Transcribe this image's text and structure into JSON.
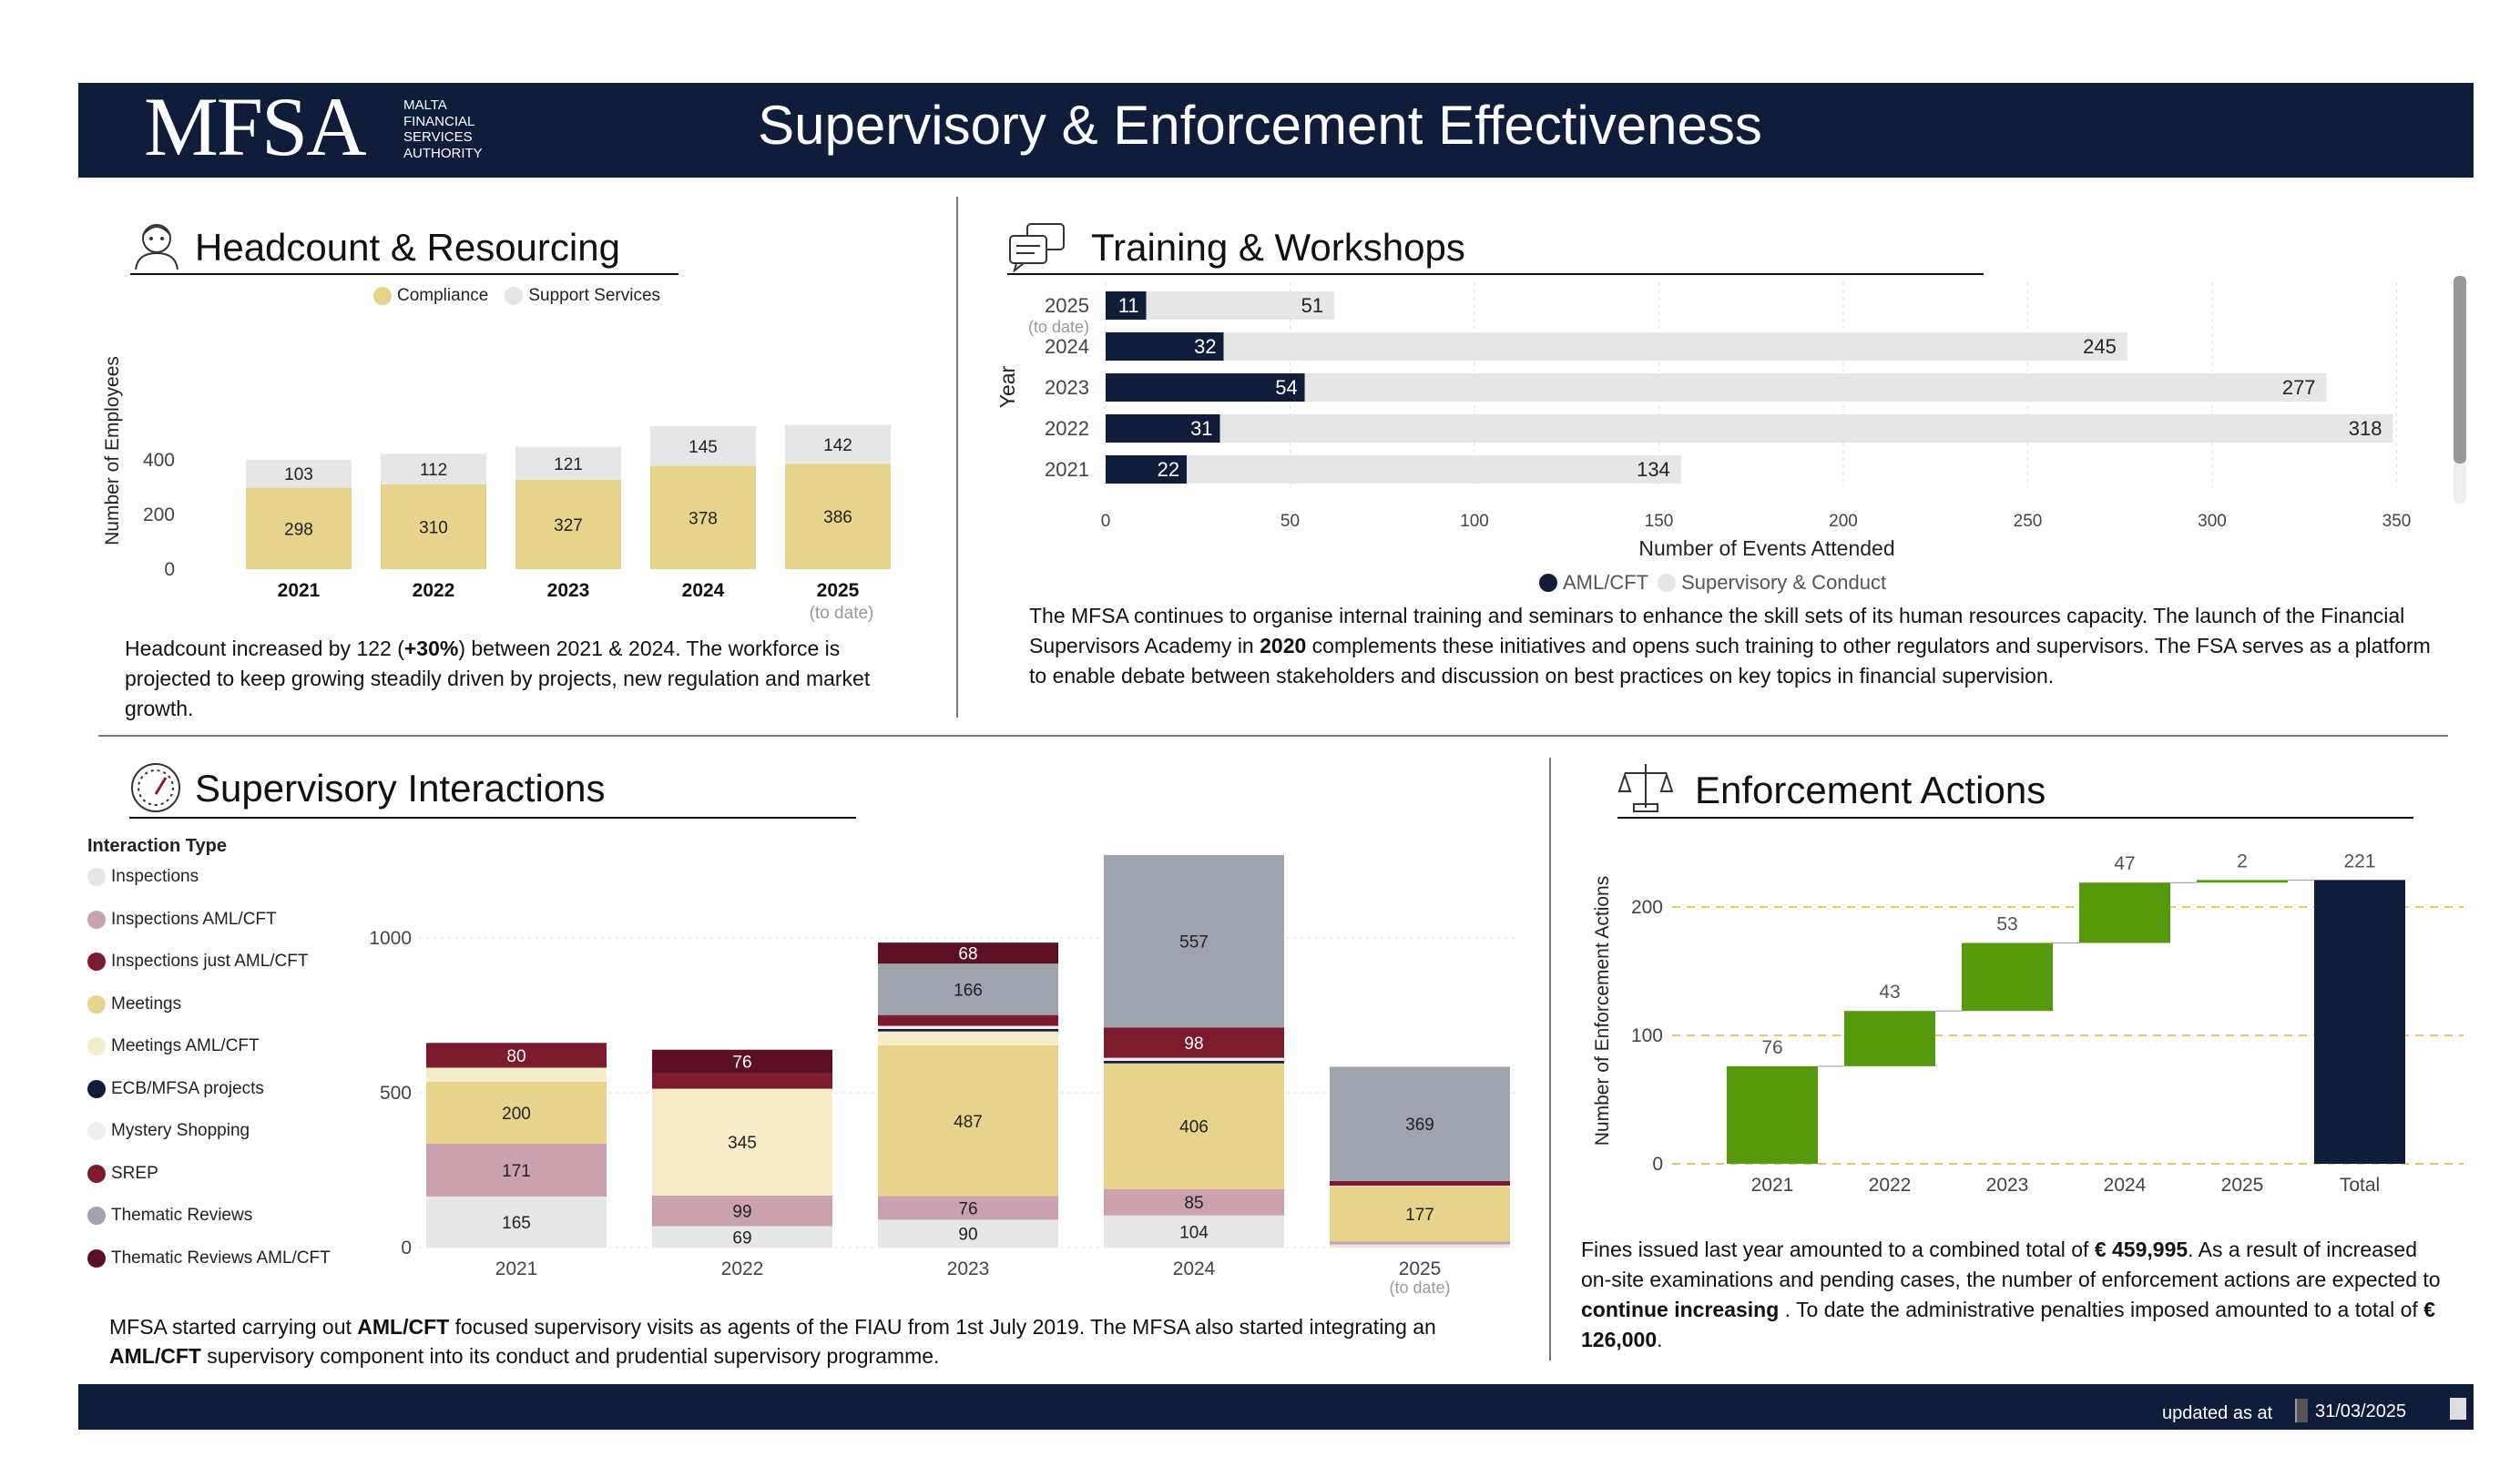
{
  "header": {
    "logo": "MFSA",
    "logo_sub": [
      "MALTA",
      "FINANCIAL",
      "SERVICES",
      "AUTHORITY"
    ],
    "title": "Supervisory & Enforcement Effectiveness"
  },
  "footer": {
    "label": "updated as at",
    "date": "31/03/2025"
  },
  "colors": {
    "navy": "#0f1c3a",
    "gold": "#e8d38d",
    "light_grey": "#e6e6e6",
    "green": "#57990c",
    "maroon": "#5d1024"
  },
  "headcount": {
    "title": "Headcount & Resourcing",
    "icon": "person-icon",
    "paragraph": [
      "Headcount increased by 122 (",
      "+30%",
      ") between 2021 & 2024. The workforce is projected to keep growing steadily driven by projects, new regulation and market growth."
    ]
  },
  "training": {
    "title": "Training & Workshops",
    "icon": "chat-bubbles-icon",
    "paragraph": [
      "The MFSA continues to organise internal training and seminars to enhance the skill sets of its human resources capacity. The launch of the Financial Supervisors Academy in ",
      "2020",
      " complements these initiatives and opens such training to other regulators and supervisors. The FSA serves as a platform to enable debate between stakeholders and discussion on best practices on key topics in financial supervision."
    ]
  },
  "interactions": {
    "title": "Supervisory Interactions",
    "icon": "gauge-icon",
    "paragraph": [
      "MFSA started carrying out ",
      "AML/CFT",
      " focused supervisory visits as agents of the FIAU from 1st July 2019. The MFSA also started integrating an ",
      "AML/CFT",
      " supervisory component into its conduct and prudential supervisory programme."
    ]
  },
  "enforcement": {
    "title": "Enforcement Actions",
    "icon": "scales-icon",
    "paragraph": [
      "Fines issued last year amounted to a combined total of ",
      "€ 459,995",
      ". As a result of increased on-site examinations and pending cases, the number of enforcement actions are expected to ",
      "continue increasing",
      " . To date the administrative penalties imposed amounted to a total of ",
      "€ 126,000",
      "."
    ]
  },
  "chart_data": [
    {
      "id": "headcount",
      "type": "bar",
      "stacked": true,
      "categories": [
        "2021",
        "2022",
        "2023",
        "2024",
        "2025"
      ],
      "category_note": {
        "2025": "(to date)"
      },
      "series": [
        {
          "name": "Compliance",
          "color": "#e8d38d",
          "values": [
            298,
            310,
            327,
            378,
            386
          ]
        },
        {
          "name": "Support Services",
          "color": "#e6e6e6",
          "values": [
            103,
            112,
            121,
            145,
            142
          ]
        }
      ],
      "ylabel": "Number of Employees",
      "ylim": [
        0,
        460
      ],
      "yticks": [
        0,
        200,
        400
      ],
      "legend": "top"
    },
    {
      "id": "training",
      "type": "bar",
      "orientation": "horizontal",
      "stacked": true,
      "categories": [
        "2025",
        "2024",
        "2023",
        "2022",
        "2021"
      ],
      "category_note": {
        "2025": "(to date)"
      },
      "series": [
        {
          "name": "AML/CFT",
          "color": "#0f1c3a",
          "values": [
            11,
            32,
            54,
            31,
            22
          ]
        },
        {
          "name": "Supervisory & Conduct",
          "color": "#e6e6e6",
          "values": [
            51,
            245,
            277,
            318,
            134
          ]
        }
      ],
      "xlabel": "Number of Events Attended",
      "ylabel": "Year",
      "xlim": [
        0,
        350
      ],
      "xticks": [
        0,
        50,
        100,
        150,
        200,
        250,
        300,
        350
      ],
      "legend": "bottom"
    },
    {
      "id": "interactions",
      "type": "bar",
      "stacked": true,
      "legend_title": "Interaction Type",
      "categories": [
        "2021",
        "2022",
        "2023",
        "2024",
        "2025"
      ],
      "category_note": {
        "2025": "(to date)"
      },
      "series": [
        {
          "name": "Inspections",
          "color": "#e6e6e6",
          "values": [
            165,
            69,
            90,
            104,
            10
          ]
        },
        {
          "name": "Inspections  AML/CFT",
          "color": "#c9a2ad",
          "values": [
            171,
            99,
            76,
            85,
            10
          ]
        },
        {
          "name": "Inspections just AML/CFT",
          "color": "#7e1a2e",
          "values": [
            0,
            0,
            0,
            0,
            0
          ]
        },
        {
          "name": "Meetings",
          "color": "#e8d38d",
          "values": [
            200,
            0,
            487,
            406,
            177
          ]
        },
        {
          "name": "Meetings  AML/CFT",
          "color": "#f5ecc9",
          "values": [
            45,
            345,
            45,
            0,
            3
          ]
        },
        {
          "name": "ECB/MFSA projects",
          "color": "#0f1c3a",
          "values": [
            0,
            0,
            8,
            8,
            0
          ]
        },
        {
          "name": "Mystery Shopping",
          "color": "#f1efee",
          "values": [
            0,
            0,
            10,
            10,
            0
          ]
        },
        {
          "name": "SREP",
          "color": "#7e1a2e",
          "values": [
            80,
            50,
            35,
            98,
            15
          ]
        },
        {
          "name": "Thematic Reviews",
          "color": "#9ea3ad",
          "values": [
            0,
            0,
            166,
            557,
            369
          ]
        },
        {
          "name": "Thematic Reviews   AML/CFT",
          "color": "#5d1024",
          "values": [
            0,
            76,
            68,
            0,
            0
          ]
        }
      ],
      "ylim": [
        0,
        1300
      ],
      "yticks": [
        0,
        500,
        1000
      ],
      "grid": true,
      "legend": "left"
    },
    {
      "id": "enforcement",
      "type": "waterfall",
      "categories": [
        "2021",
        "2022",
        "2023",
        "2024",
        "2025",
        "Total"
      ],
      "values": [
        76,
        43,
        53,
        47,
        2,
        221
      ],
      "ylabel": "Number of Enforcement Actions",
      "ylim": [
        0,
        240
      ],
      "yticks": [
        0,
        100,
        200
      ],
      "increase_color": "#57990c",
      "total_color": "#0f1c3a",
      "grid": true
    }
  ]
}
